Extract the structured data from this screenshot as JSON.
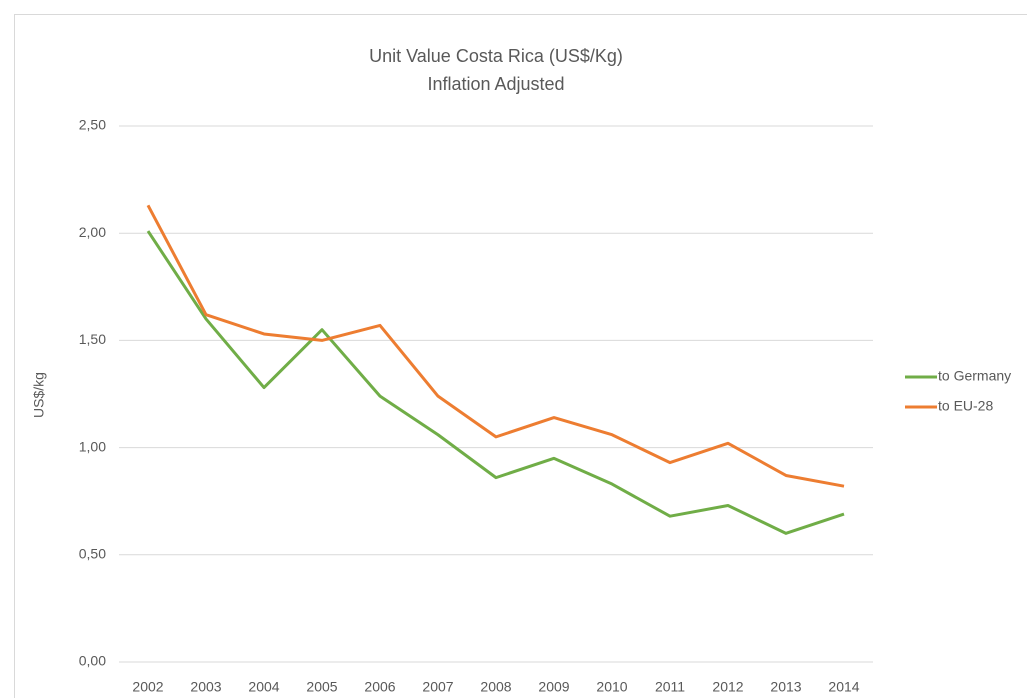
{
  "chart_data": {
    "type": "line",
    "title": "Unit Value Costa Rica (US$/Kg)",
    "subtitle": "Inflation Adjusted",
    "y_label": "US$/kg",
    "categories": [
      "2002",
      "2003",
      "2004",
      "2005",
      "2006",
      "2007",
      "2008",
      "2009",
      "2010",
      "2011",
      "2012",
      "2013",
      "2014"
    ],
    "series": [
      {
        "name": "to Germany",
        "color": "#70ad47",
        "values": [
          2.01,
          1.6,
          1.28,
          1.55,
          1.24,
          1.06,
          0.86,
          0.95,
          0.83,
          0.68,
          0.73,
          0.6,
          0.69
        ]
      },
      {
        "name": "to EU-28",
        "color": "#ed7d31",
        "values": [
          2.13,
          1.62,
          1.53,
          1.5,
          1.57,
          1.24,
          1.05,
          1.14,
          1.06,
          0.93,
          1.02,
          0.87,
          0.82
        ]
      }
    ],
    "ylim": [
      0,
      2.5
    ],
    "yticks": [
      {
        "value": 0,
        "label": "0,00"
      },
      {
        "value": 0.5,
        "label": "0,50"
      },
      {
        "value": 1,
        "label": "1,00"
      },
      {
        "value": 1.5,
        "label": "1,50"
      },
      {
        "value": 2,
        "label": "2,00"
      },
      {
        "value": 2.5,
        "label": "2,50"
      }
    ],
    "grid": true,
    "legend": "right"
  }
}
